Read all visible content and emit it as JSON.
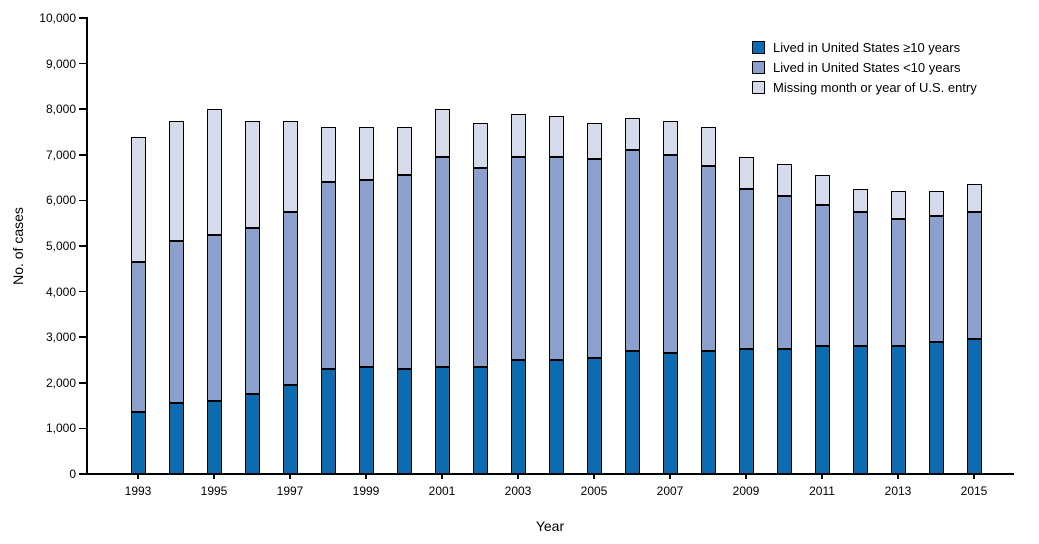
{
  "chart_data": {
    "type": "bar",
    "stacked": true,
    "title": "",
    "xlabel": "Year",
    "ylabel": "No. of cases",
    "ylim": [
      0,
      10000
    ],
    "ytick_step": 1000,
    "yticklabels": [
      "0",
      "1,000",
      "2,000",
      "3,000",
      "4,000",
      "5,000",
      "6,000",
      "7,000",
      "8,000",
      "9,000",
      "10,000"
    ],
    "categories": [
      "1993",
      "1994",
      "1995",
      "1996",
      "1997",
      "1998",
      "1999",
      "2000",
      "2001",
      "2002",
      "2003",
      "2004",
      "2005",
      "2006",
      "2007",
      "2008",
      "2009",
      "2010",
      "2011",
      "2012",
      "2013",
      "2014",
      "2015"
    ],
    "xticklabels_shown": [
      "1993",
      "1995",
      "1997",
      "1999",
      "2001",
      "2003",
      "2005",
      "2007",
      "2009",
      "2011",
      "2013",
      "2015"
    ],
    "grid": false,
    "legend_position": "top-right",
    "series": [
      {
        "name": "Lived in United States ≥10 years",
        "color": "#0d6cb1",
        "values": [
          1350,
          1550,
          1600,
          1750,
          1950,
          2300,
          2350,
          2300,
          2350,
          2350,
          2500,
          2500,
          2550,
          2700,
          2650,
          2700,
          2750,
          2750,
          2800,
          2800,
          2800,
          2900,
          2950
        ]
      },
      {
        "name": "Lived in United States <10 years",
        "color": "#8ba0cc",
        "values": [
          3300,
          3550,
          3650,
          3650,
          3800,
          4100,
          4100,
          4250,
          4600,
          4350,
          4450,
          4450,
          4350,
          4400,
          4350,
          4050,
          3500,
          3350,
          3100,
          2950,
          2800,
          2750,
          2800
        ]
      },
      {
        "name": "Missing month or year of U.S. entry",
        "color": "#d6dbec",
        "values": [
          2750,
          2650,
          2750,
          2350,
          2000,
          1200,
          1150,
          1050,
          1050,
          1000,
          950,
          900,
          800,
          700,
          750,
          850,
          700,
          700,
          650,
          500,
          600,
          550,
          600
        ]
      }
    ]
  }
}
